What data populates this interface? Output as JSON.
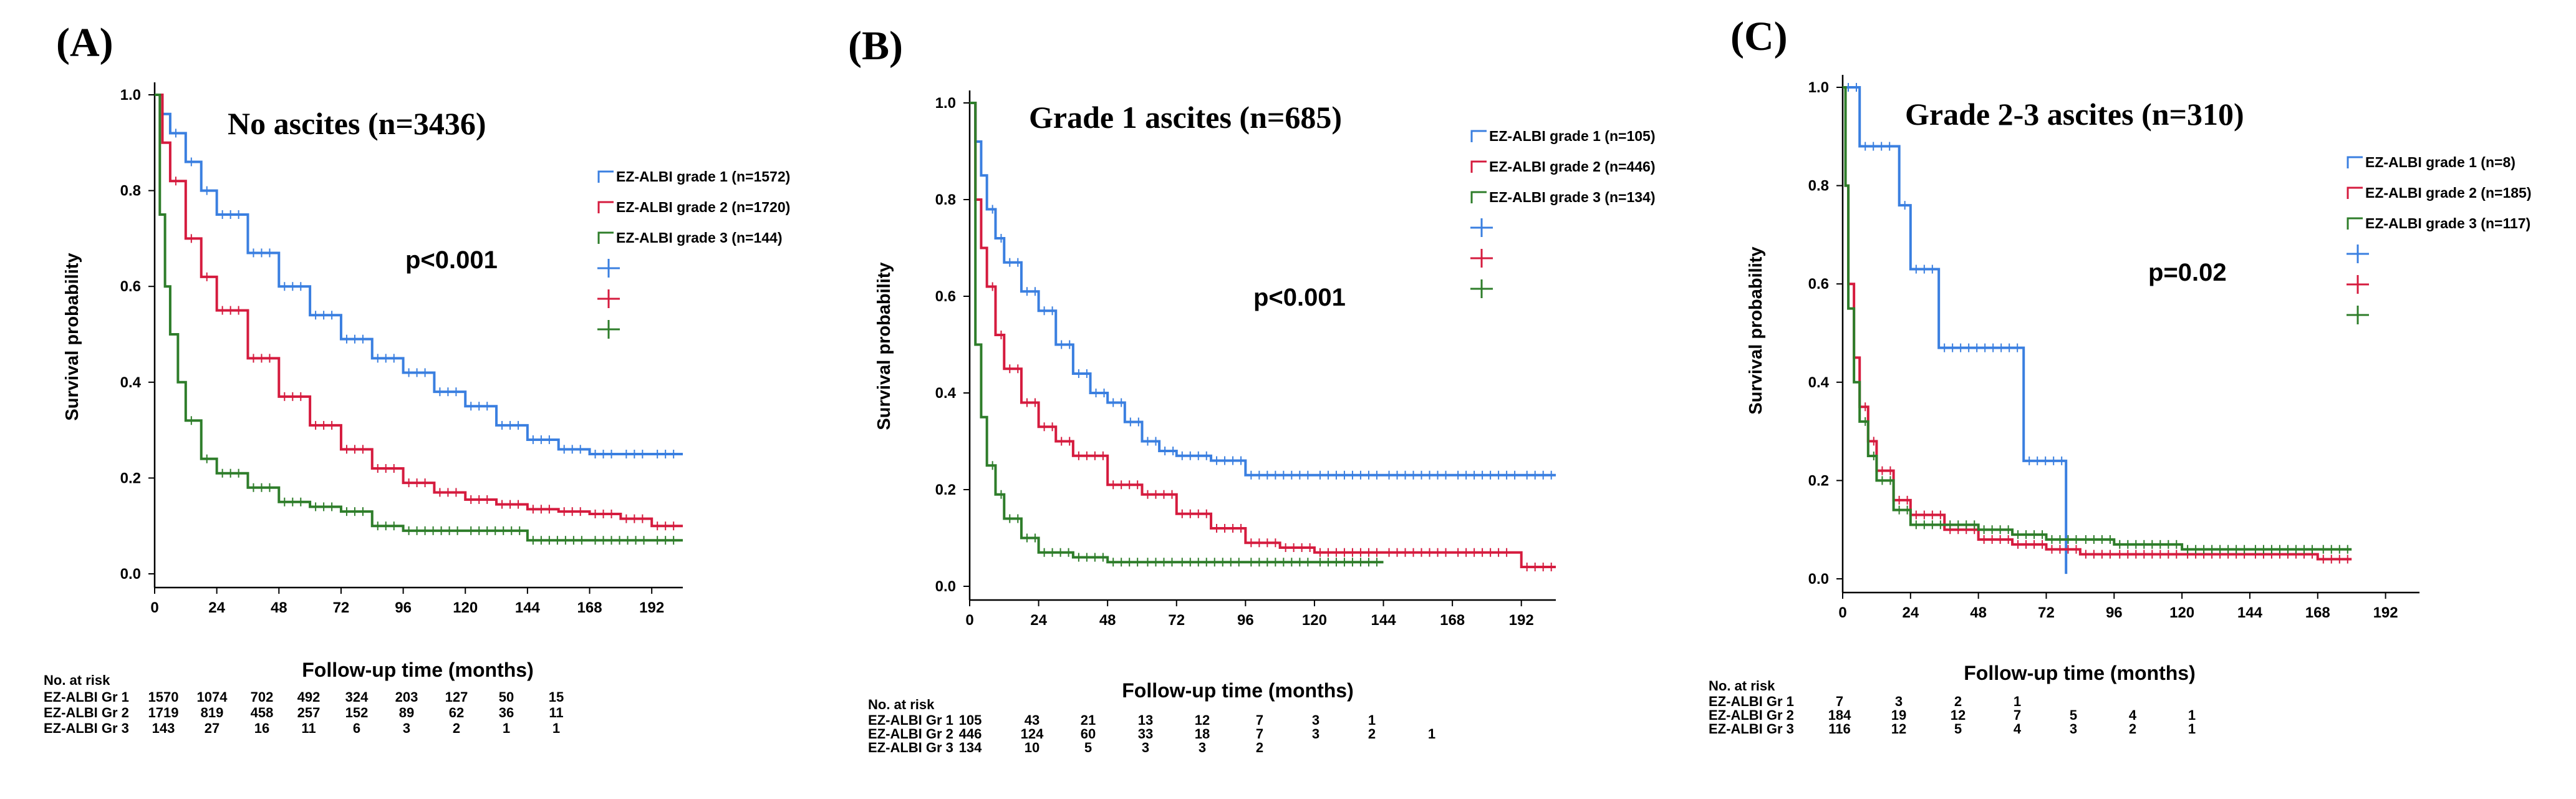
{
  "chart_data": [
    {
      "type": "line",
      "panel_label": "(A)",
      "title": "No ascites (n=3436)",
      "annotation": "p<0.001",
      "xlabel": "Follow-up time (months)",
      "ylabel": "Survival probability",
      "xlim": [
        0,
        204
      ],
      "ylim": [
        0,
        1.0
      ],
      "xticks": [
        "0",
        "24",
        "48",
        "72",
        "96",
        "120",
        "144",
        "168",
        "192"
      ],
      "yticks": [
        "0.0",
        "0.2",
        "0.4",
        "0.6",
        "0.8",
        "1.0"
      ],
      "series": [
        {
          "name": "EZ-ALBI grade 1 (n=1572)",
          "color": "#3a7fe0",
          "x": [
            0,
            3,
            6,
            12,
            18,
            24,
            36,
            48,
            60,
            72,
            84,
            96,
            108,
            120,
            132,
            144,
            156,
            168,
            180,
            192,
            204
          ],
          "y": [
            1.0,
            0.96,
            0.92,
            0.86,
            0.8,
            0.75,
            0.67,
            0.6,
            0.54,
            0.49,
            0.45,
            0.42,
            0.38,
            0.35,
            0.31,
            0.28,
            0.26,
            0.25,
            0.25,
            0.25,
            0.25
          ]
        },
        {
          "name": "EZ-ALBI grade 2 (n=1720)",
          "color": "#d51b3e",
          "x": [
            0,
            3,
            6,
            12,
            18,
            24,
            36,
            48,
            60,
            72,
            84,
            96,
            108,
            120,
            132,
            144,
            156,
            168,
            180,
            192,
            204
          ],
          "y": [
            1.0,
            0.9,
            0.82,
            0.7,
            0.62,
            0.55,
            0.45,
            0.37,
            0.31,
            0.26,
            0.22,
            0.19,
            0.17,
            0.155,
            0.145,
            0.135,
            0.13,
            0.125,
            0.115,
            0.1,
            0.1
          ]
        },
        {
          "name": "EZ-ALBI grade 3 (n=144)",
          "color": "#2e7d2a",
          "x": [
            0,
            2,
            4,
            6,
            9,
            12,
            18,
            24,
            36,
            48,
            60,
            72,
            84,
            96,
            120,
            144,
            168,
            192,
            204
          ],
          "y": [
            1.0,
            0.75,
            0.6,
            0.5,
            0.4,
            0.32,
            0.24,
            0.21,
            0.18,
            0.15,
            0.14,
            0.13,
            0.1,
            0.09,
            0.09,
            0.07,
            0.07,
            0.07,
            0.07
          ]
        }
      ],
      "risk_table": {
        "header": "No. at risk",
        "rows": [
          {
            "label": "EZ-ALBI Gr 1",
            "values": [
              "1570",
              "1074",
              "702",
              "492",
              "324",
              "203",
              "127",
              "50",
              "15"
            ]
          },
          {
            "label": "EZ-ALBI Gr 2",
            "values": [
              "1719",
              "819",
              "458",
              "257",
              "152",
              "89",
              "62",
              "36",
              "11"
            ]
          },
          {
            "label": "EZ-ALBI Gr 3",
            "values": [
              "143",
              "27",
              "16",
              "11",
              "6",
              "3",
              "2",
              "1",
              "1"
            ]
          }
        ]
      }
    },
    {
      "type": "line",
      "panel_label": "(B)",
      "title": "Grade 1 ascites (n=685)",
      "annotation": "p<0.001",
      "xlabel": "Follow-up time (months)",
      "ylabel": "Survival probability",
      "xlim": [
        0,
        204
      ],
      "ylim": [
        0,
        1.0
      ],
      "xticks": [
        "0",
        "24",
        "48",
        "72",
        "96",
        "120",
        "144",
        "168",
        "192"
      ],
      "yticks": [
        "0.0",
        "0.2",
        "0.4",
        "0.6",
        "0.8",
        "1.0"
      ],
      "series": [
        {
          "name": "EZ-ALBI grade 1 (n=105)",
          "color": "#3a7fe0",
          "x": [
            0,
            2,
            4,
            6,
            9,
            12,
            18,
            24,
            30,
            36,
            42,
            48,
            54,
            60,
            66,
            72,
            84,
            96,
            120,
            144,
            168,
            192,
            204
          ],
          "y": [
            1.0,
            0.92,
            0.85,
            0.78,
            0.72,
            0.67,
            0.61,
            0.57,
            0.5,
            0.44,
            0.4,
            0.38,
            0.34,
            0.3,
            0.28,
            0.27,
            0.26,
            0.23,
            0.23,
            0.23,
            0.23,
            0.23,
            0.23
          ]
        },
        {
          "name": "EZ-ALBI grade 2 (n=446)",
          "color": "#d51b3e",
          "x": [
            0,
            2,
            4,
            6,
            9,
            12,
            18,
            24,
            30,
            36,
            48,
            60,
            72,
            84,
            96,
            108,
            120,
            144,
            168,
            190,
            192,
            204
          ],
          "y": [
            1.0,
            0.8,
            0.7,
            0.62,
            0.52,
            0.45,
            0.38,
            0.33,
            0.3,
            0.27,
            0.21,
            0.19,
            0.15,
            0.12,
            0.09,
            0.08,
            0.07,
            0.07,
            0.07,
            0.07,
            0.04,
            0.04
          ]
        },
        {
          "name": "EZ-ALBI grade 3 (n=134)",
          "color": "#2e7d2a",
          "x": [
            0,
            2,
            4,
            6,
            9,
            12,
            18,
            24,
            36,
            48,
            60,
            72,
            96,
            120,
            144
          ],
          "y": [
            1.0,
            0.5,
            0.35,
            0.25,
            0.19,
            0.14,
            0.1,
            0.07,
            0.06,
            0.05,
            0.05,
            0.05,
            0.05,
            0.05,
            0.05
          ]
        }
      ],
      "risk_table": {
        "header": "No. at risk",
        "rows": [
          {
            "label": "EZ-ALBI Gr 1",
            "values": [
              "105",
              "43",
              "21",
              "13",
              "12",
              "7",
              "3",
              "1",
              ""
            ]
          },
          {
            "label": "EZ-ALBI Gr 2",
            "values": [
              "446",
              "124",
              "60",
              "33",
              "18",
              "7",
              "3",
              "2",
              "1"
            ]
          },
          {
            "label": "EZ-ALBI Gr 3",
            "values": [
              "134",
              "10",
              "5",
              "3",
              "3",
              "2",
              "",
              "",
              ""
            ]
          }
        ]
      }
    },
    {
      "type": "line",
      "panel_label": "(C)",
      "title": "Grade 2-3 ascites (n=310)",
      "annotation": "p=0.02",
      "xlabel": "Follow-up time (months)",
      "ylabel": "Survival probability",
      "xlim": [
        0,
        204
      ],
      "ylim": [
        0,
        1.0
      ],
      "xticks": [
        "0",
        "24",
        "48",
        "72",
        "96",
        "120",
        "144",
        "168",
        "192"
      ],
      "yticks": [
        "0.0",
        "0.2",
        "0.4",
        "0.6",
        "0.8",
        "1.0"
      ],
      "series": [
        {
          "name": "EZ-ALBI grade 1 (n=8)",
          "color": "#3a7fe0",
          "x": [
            0,
            6,
            6,
            20,
            20,
            24,
            24,
            34,
            34,
            64,
            64,
            79,
            79
          ],
          "y": [
            1.0,
            1.0,
            0.88,
            0.88,
            0.76,
            0.76,
            0.63,
            0.63,
            0.47,
            0.47,
            0.24,
            0.24,
            0.01
          ]
        },
        {
          "name": "EZ-ALBI grade 2 (n=185)",
          "color": "#d51b3e",
          "x": [
            0,
            1,
            2,
            4,
            6,
            9,
            12,
            18,
            24,
            36,
            48,
            60,
            72,
            84,
            96,
            120,
            144,
            168,
            180
          ],
          "y": [
            1.0,
            0.8,
            0.6,
            0.45,
            0.35,
            0.28,
            0.22,
            0.16,
            0.13,
            0.1,
            0.08,
            0.07,
            0.06,
            0.05,
            0.05,
            0.05,
            0.05,
            0.04,
            0.04
          ]
        },
        {
          "name": "EZ-ALBI grade 3 (n=117)",
          "color": "#2e7d2a",
          "x": [
            0,
            1,
            2,
            4,
            6,
            9,
            12,
            18,
            24,
            36,
            48,
            60,
            72,
            84,
            96,
            120,
            144,
            168,
            180
          ],
          "y": [
            1.0,
            0.8,
            0.55,
            0.4,
            0.32,
            0.25,
            0.2,
            0.14,
            0.11,
            0.11,
            0.1,
            0.09,
            0.08,
            0.08,
            0.07,
            0.06,
            0.06,
            0.06,
            0.06
          ]
        }
      ],
      "risk_table": {
        "header": "No. at risk",
        "rows": [
          {
            "label": "EZ-ALBI Gr 1",
            "values": [
              "7",
              "3",
              "2",
              "1",
              "",
              "",
              "",
              "",
              ""
            ]
          },
          {
            "label": "EZ-ALBI Gr 2",
            "values": [
              "184",
              "19",
              "12",
              "7",
              "5",
              "4",
              "1",
              "",
              ""
            ]
          },
          {
            "label": "EZ-ALBI Gr 3",
            "values": [
              "116",
              "12",
              "5",
              "4",
              "3",
              "2",
              "1",
              "",
              ""
            ]
          }
        ]
      }
    }
  ]
}
